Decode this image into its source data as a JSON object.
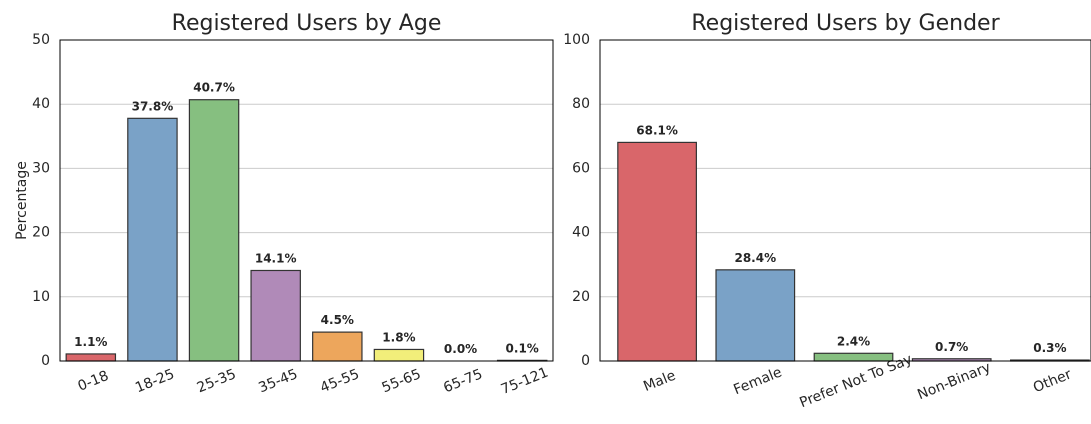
{
  "chart_data": [
    {
      "type": "bar",
      "title": "Registered Users by Age",
      "ylabel": "Percentage",
      "categories": [
        "0-18",
        "18-25",
        "25-35",
        "35-45",
        "45-55",
        "55-65",
        "65-75",
        "75-121"
      ],
      "values": [
        1.1,
        37.8,
        40.7,
        14.1,
        4.5,
        1.8,
        0.0,
        0.1
      ],
      "value_labels": [
        "1.1%",
        "37.8%",
        "40.7%",
        "14.1%",
        "4.5%",
        "1.8%",
        "0.0%",
        "0.1%"
      ],
      "colors": [
        "#d9666a",
        "#7aa2c7",
        "#86bf80",
        "#b08ab8",
        "#eda65c",
        "#f2ee7a",
        "#b5835a",
        "#ee9fcb"
      ],
      "ylim": [
        0,
        50
      ],
      "yticks": [
        0,
        10,
        20,
        30,
        40,
        50
      ],
      "grid": true
    },
    {
      "type": "bar",
      "title": "Registered Users by Gender",
      "categories": [
        "Male",
        "Female",
        "Prefer Not To Say",
        "Non-Binary",
        "Other"
      ],
      "values": [
        68.1,
        28.4,
        2.4,
        0.7,
        0.3
      ],
      "value_labels": [
        "68.1%",
        "28.4%",
        "2.4%",
        "0.7%",
        "0.3%"
      ],
      "colors": [
        "#d9666a",
        "#7aa2c7",
        "#86bf80",
        "#b08ab8",
        "#eda65c"
      ],
      "ylim": [
        0,
        100
      ],
      "yticks": [
        0,
        20,
        40,
        60,
        80,
        100
      ],
      "grid": true
    }
  ]
}
